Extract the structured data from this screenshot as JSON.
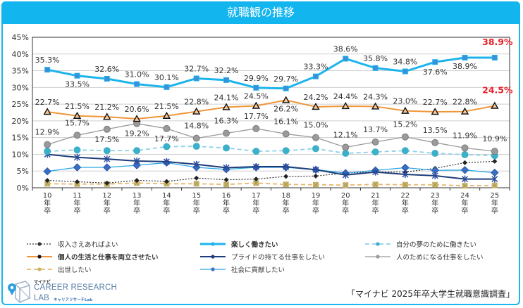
{
  "title": "就職観の推移",
  "source": "「マイナビ 2025年卒大学生就職意識調査」",
  "logo": {
    "small": "マイナビ",
    "main": "CAREER RESEARCH",
    "lab": "LAB",
    "sub": "キャリアリサーチLab"
  },
  "chart_data": {
    "type": "line",
    "title": "就職観の推移",
    "xlabel": "",
    "ylabel": "",
    "x": [
      "10年卒",
      "11年卒",
      "12年卒",
      "13年卒",
      "14年卒",
      "15年卒",
      "16年卒",
      "17年卒",
      "18年卒",
      "19年卒",
      "20年卒",
      "21年卒",
      "22年卒",
      "23年卒",
      "24年卒",
      "25年卒"
    ],
    "x_tick_labels": [
      [
        "10",
        "年",
        "卒"
      ],
      [
        "11",
        "年",
        "卒"
      ],
      [
        "12",
        "年",
        "卒"
      ],
      [
        "13",
        "年",
        "卒"
      ],
      [
        "14",
        "年",
        "卒"
      ],
      [
        "15",
        "年",
        "卒"
      ],
      [
        "16",
        "年",
        "卒"
      ],
      [
        "17",
        "年",
        "卒"
      ],
      [
        "18",
        "年",
        "卒"
      ],
      [
        "19",
        "年",
        "卒"
      ],
      [
        "20",
        "年",
        "卒"
      ],
      [
        "21",
        "年",
        "卒"
      ],
      [
        "22",
        "年",
        "卒"
      ],
      [
        "23",
        "年",
        "卒"
      ],
      [
        "24",
        "年",
        "卒"
      ],
      [
        "25",
        "年",
        "卒"
      ]
    ],
    "ylim": [
      0,
      45
    ],
    "yticks": [
      0,
      5,
      10,
      15,
      20,
      25,
      30,
      35,
      40,
      45
    ],
    "ytick_labels": [
      "0%",
      "5%",
      "10%",
      "15%",
      "20%",
      "25%",
      "30%",
      "35%",
      "40%",
      "45%"
    ],
    "grid": true,
    "legend_position": "bottom",
    "series": [
      {
        "name": "楽しく働きたい",
        "color": "#1cb4ec",
        "style": "solid-thick",
        "marker": "square",
        "values": [
          35.3,
          33.5,
          32.6,
          31.0,
          30.1,
          32.7,
          32.2,
          29.9,
          29.7,
          33.3,
          38.6,
          35.8,
          34.8,
          37.6,
          38.9,
          38.9
        ],
        "labels": [
          "35.3%",
          "33.5%",
          "32.6%",
          "31.0%",
          "30.1%",
          "32.7%",
          "32.2%",
          "29.9%",
          "29.7%",
          "33.3%",
          "38.6%",
          "35.8%",
          "34.8%",
          "37.6%",
          "38.9%",
          "38.9%"
        ],
        "highlight_last": true
      },
      {
        "name": "個人の生活と仕事を両立させたい",
        "color": "#f0963a",
        "style": "solid",
        "marker": "triangle",
        "values": [
          22.7,
          21.5,
          21.2,
          20.6,
          21.5,
          22.8,
          24.1,
          24.5,
          26.2,
          24.2,
          24.4,
          24.3,
          23.0,
          22.7,
          22.8,
          24.5
        ],
        "labels": [
          "22.7%",
          "21.5%",
          "21.2%",
          "20.6%",
          "21.5%",
          "22.8%",
          "24.1%",
          "24.5%",
          "26.2%",
          "24.2%",
          "24.4%",
          "24.3%",
          "23.0%",
          "22.7%",
          "22.8%",
          "24.5%"
        ],
        "highlight_last": true
      },
      {
        "name": "人のためになる仕事をしたい",
        "color": "#9a9a9a",
        "style": "solid-thin",
        "marker": "circle",
        "values": [
          12.9,
          15.7,
          17.5,
          19.2,
          17.7,
          14.8,
          16.3,
          17.7,
          16.1,
          15.0,
          12.1,
          13.7,
          15.2,
          13.5,
          11.9,
          10.9
        ],
        "labels": [
          "12.9%",
          "15.7%",
          "17.5%",
          "19.2%",
          "17.7%",
          "14.8%",
          "16.3%",
          "17.7%",
          "16.1%",
          "15.0%",
          "12.1%",
          "13.7%",
          "15.2%",
          "13.5%",
          "11.9%",
          "10.9%"
        ],
        "highlight_last": false
      },
      {
        "name": "自分の夢のために働きたい",
        "color": "#8fd0e6",
        "marker_color": "#3bb0c8",
        "style": "dashed",
        "marker": "circle",
        "values": [
          10.9,
          11.3,
          11.1,
          11.1,
          12.3,
          12.4,
          11.9,
          10.9,
          11.1,
          11.7,
          10.3,
          10.7,
          11.1,
          10.3,
          9.9,
          9.6
        ]
      },
      {
        "name": "プライドの持てる仕事をしたい",
        "color": "#1f3d7a",
        "style": "solid",
        "marker": "asterisk",
        "values": [
          10.0,
          9.1,
          8.6,
          8.0,
          7.8,
          7.0,
          6.0,
          6.3,
          6.3,
          5.4,
          3.8,
          4.7,
          4.0,
          3.6,
          2.6,
          2.6
        ]
      },
      {
        "name": "社会に貢献したい",
        "color": "#2aa8e6",
        "marker_color": "#3a6fc4",
        "style": "solid-thin",
        "marker": "diamond",
        "values": [
          4.9,
          6.1,
          6.1,
          6.7,
          7.5,
          6.1,
          5.5,
          6.1,
          6.1,
          5.4,
          4.4,
          5.2,
          6.0,
          5.2,
          5.3,
          4.5
        ]
      },
      {
        "name": "収入さえあればよい",
        "color": "#333333",
        "style": "dotted",
        "marker": "diamond-small",
        "values": [
          2.2,
          1.8,
          1.4,
          2.2,
          1.9,
          2.9,
          2.4,
          2.6,
          3.4,
          3.5,
          4.4,
          4.7,
          4.7,
          5.8,
          7.5,
          7.9
        ]
      },
      {
        "name": "出世したい",
        "color": "#e8b66a",
        "marker_color": "#c9b56a",
        "style": "dashed",
        "marker": "square-x",
        "values": [
          1.2,
          1.1,
          1.1,
          1.4,
          1.2,
          1.2,
          1.0,
          1.4,
          1.0,
          0.9,
          0.8,
          1.0,
          0.9,
          0.9,
          0.6,
          0.7
        ]
      }
    ]
  },
  "legend": [
    {
      "label": "収入さえあればよい",
      "series_index": 6,
      "bold": false
    },
    {
      "label": "楽しく働きたい",
      "series_index": 0,
      "bold": true
    },
    {
      "label": "自分の夢のために働きたい",
      "series_index": 3,
      "bold": false
    },
    {
      "label": "個人の生活と仕事を両立させたい",
      "series_index": 1,
      "bold": true
    },
    {
      "label": "プライドの持てる仕事をしたい",
      "series_index": 4,
      "bold": false
    },
    {
      "label": "人のためになる仕事をしたい",
      "series_index": 2,
      "bold": false
    },
    {
      "label": "出世したい",
      "series_index": 7,
      "bold": false
    },
    {
      "label": "社会に貢献したい",
      "series_index": 5,
      "bold": false
    }
  ],
  "highlight_color": "#e8202a"
}
